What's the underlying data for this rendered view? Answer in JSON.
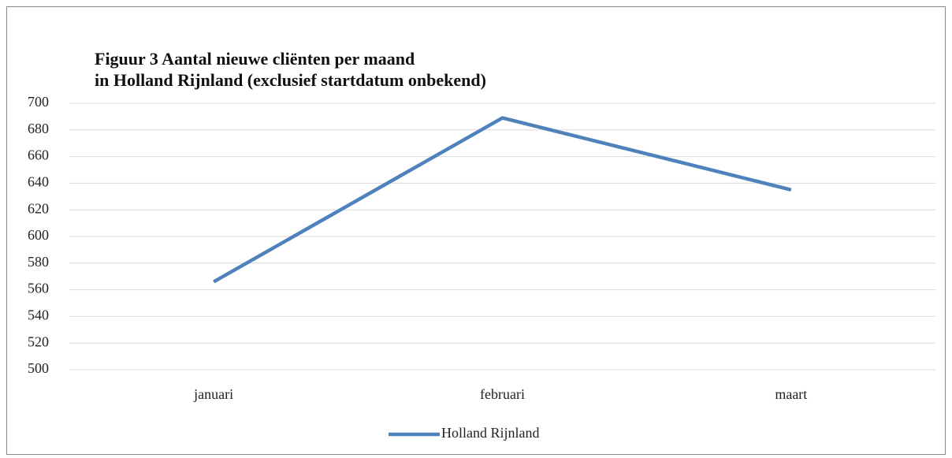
{
  "chart_data": {
    "type": "line",
    "title": [
      "Figuur 3 Aantal nieuwe cliënten per maand",
      "in Holland Rijnland  (exclusief startdatum onbekend)"
    ],
    "categories": [
      "januari",
      "februari",
      "maart"
    ],
    "series": [
      {
        "name": "Holland Rijnland",
        "color": "#4f81bd",
        "values": [
          566,
          689,
          635
        ]
      }
    ],
    "ylim": [
      500,
      700
    ],
    "yticks": [
      500,
      520,
      540,
      560,
      580,
      600,
      620,
      640,
      660,
      680,
      700
    ],
    "grid": true,
    "legend": "bottom"
  }
}
